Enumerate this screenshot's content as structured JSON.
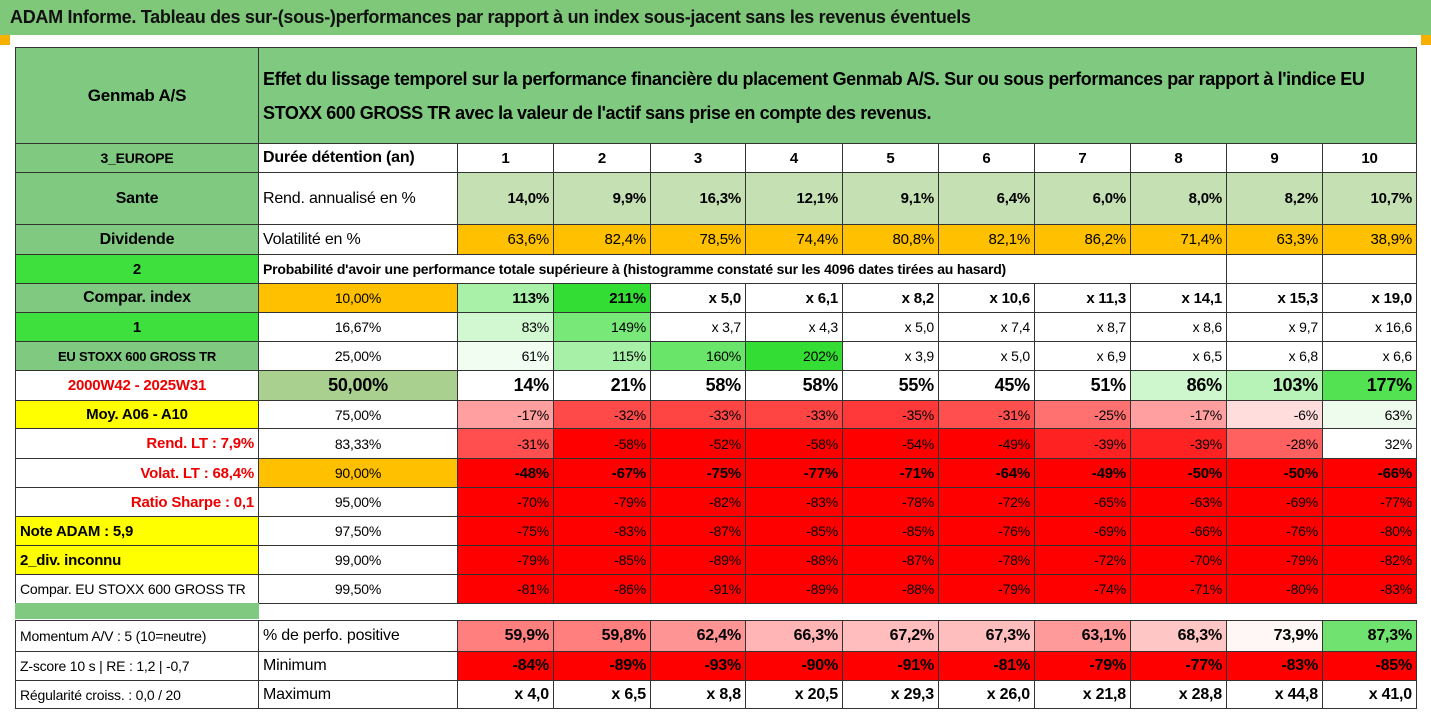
{
  "header": {
    "title": "ADAM Informe. Tableau des sur-(sous-)performances par rapport à un index sous-jacent sans les revenus éventuels"
  },
  "table": {
    "corner": "Genmab A/S",
    "description": "Effet du lissage temporel sur la performance financière du placement Genmab A/S. Sur ou sous performances par rapport à l'indice EU STOXX 600 GROSS TR avec la valeur de l'actif sans prise en compte des revenus.",
    "rows": [
      [
        "3_EUROPE",
        "Durée détention (an)",
        "1",
        "2",
        "3",
        "4",
        "5",
        "6",
        "7",
        "8",
        "9",
        "10"
      ],
      [
        "Sante",
        "Rend. annualisé en %",
        "14,0%",
        "9,9%",
        "16,3%",
        "12,1%",
        "9,1%",
        "6,4%",
        "6,0%",
        "8,0%",
        "8,2%",
        "10,7%"
      ],
      [
        "Dividende",
        "Volatilité en %",
        "63,6%",
        "82,4%",
        "78,5%",
        "74,4%",
        "80,8%",
        "82,1%",
        "86,2%",
        "71,4%",
        "63,3%",
        "38,9%"
      ],
      [
        "2",
        "Probabilité d'avoir une performance totale supérieure à (histogramme constaté sur les 4096 dates tirées au hasard)"
      ],
      [
        "Compar. index",
        "10,00%",
        "113%",
        "211%",
        "x 5,0",
        "x 6,1",
        "x 8,2",
        "x 10,6",
        "x 11,3",
        "x 14,1",
        "x 15,3",
        "x 19,0"
      ],
      [
        "1",
        "16,67%",
        "83%",
        "149%",
        "x 3,7",
        "x 4,3",
        "x 5,0",
        "x 7,4",
        "x 8,7",
        "x 8,6",
        "x 9,7",
        "x 16,6"
      ],
      [
        "EU STOXX 600 GROSS TR",
        "25,00%",
        "61%",
        "115%",
        "160%",
        "202%",
        "x 3,9",
        "x 5,0",
        "x 6,9",
        "x 6,5",
        "x 6,8",
        "x 6,6"
      ],
      [
        "2000W42 - 2025W31",
        "50,00%",
        "14%",
        "21%",
        "58%",
        "58%",
        "55%",
        "45%",
        "51%",
        "86%",
        "103%",
        "177%"
      ],
      [
        "Moy. A06 - A10",
        "75,00%",
        "-17%",
        "-32%",
        "-33%",
        "-33%",
        "-35%",
        "-31%",
        "-25%",
        "-17%",
        "-6%",
        "63%"
      ],
      [
        "Rend. LT :   7,9%",
        "83,33%",
        "-31%",
        "-58%",
        "-52%",
        "-58%",
        "-54%",
        "-49%",
        "-39%",
        "-39%",
        "-28%",
        "32%"
      ],
      [
        "Volat. LT :   68,4%",
        "90,00%",
        "-48%",
        "-67%",
        "-75%",
        "-77%",
        "-71%",
        "-64%",
        "-49%",
        "-50%",
        "-50%",
        "-66%"
      ],
      [
        "Ratio Sharpe :   0,1",
        "95,00%",
        "-70%",
        "-79%",
        "-82%",
        "-83%",
        "-78%",
        "-72%",
        "-65%",
        "-63%",
        "-69%",
        "-77%"
      ],
      [
        "Note ADAM : 5,9",
        "97,50%",
        "-75%",
        "-83%",
        "-87%",
        "-85%",
        "-85%",
        "-76%",
        "-69%",
        "-66%",
        "-76%",
        "-80%"
      ],
      [
        "2_div. inconnu",
        "99,00%",
        "-79%",
        "-85%",
        "-89%",
        "-88%",
        "-87%",
        "-78%",
        "-72%",
        "-70%",
        "-79%",
        "-82%"
      ],
      [
        "Compar. EU STOXX 600 GROSS TR",
        "99,50%",
        "-81%",
        "-86%",
        "-91%",
        "-89%",
        "-88%",
        "-79%",
        "-74%",
        "-71%",
        "-80%",
        "-83%"
      ]
    ],
    "footer_rows": [
      [
        "Momentum A/V : 5 (10=neutre)",
        "% de perfo. positive",
        "59,9%",
        "59,8%",
        "62,4%",
        "66,3%",
        "67,2%",
        "67,3%",
        "63,1%",
        "68,3%",
        "73,9%",
        "87,3%"
      ],
      [
        "Z-score 10 s | RE : 1,2 | -0,7",
        "Minimum",
        "-84%",
        "-89%",
        "-93%",
        "-90%",
        "-91%",
        "-81%",
        "-79%",
        "-77%",
        "-83%",
        "-85%"
      ],
      [
        "Régularité croiss. : 0,0 / 20",
        "Maximum",
        "x 4,0",
        "x 6,5",
        "x 8,8",
        "x 20,5",
        "x 29,3",
        "x 26,0",
        "x 21,8",
        "x 28,8",
        "x 44,8",
        "x 41,0"
      ]
    ]
  }
}
